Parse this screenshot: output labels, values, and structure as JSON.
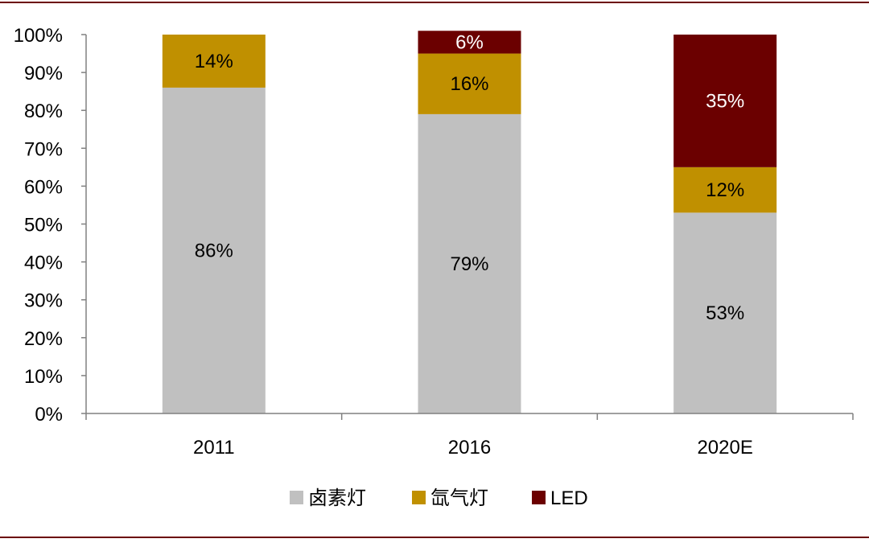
{
  "chart_data": {
    "type": "bar",
    "stacked": true,
    "categories": [
      "2011",
      "2016",
      "2020E"
    ],
    "series": [
      {
        "name": "卤素灯",
        "color": "#c0c0c0",
        "label_color": "#000000",
        "values": [
          86,
          79,
          53
        ],
        "labels": [
          "86%",
          "79%",
          "53%"
        ]
      },
      {
        "name": "氙气灯",
        "color": "#c09000",
        "label_color": "#000000",
        "values": [
          14,
          16,
          12
        ],
        "labels": [
          "14%",
          "16%",
          "12%"
        ]
      },
      {
        "name": "LED",
        "color": "#6b0000",
        "label_color": "#ffffff",
        "values": [
          0,
          6,
          35
        ],
        "labels": [
          "",
          "6%",
          "35%"
        ]
      }
    ],
    "ylim": [
      0,
      100
    ],
    "yticks": [
      "0%",
      "10%",
      "20%",
      "30%",
      "40%",
      "50%",
      "60%",
      "70%",
      "80%",
      "90%",
      "100%"
    ],
    "title": "",
    "xlabel": "",
    "ylabel": "",
    "grid": false,
    "legend": "bottom",
    "frame_color": "#6b0000"
  }
}
